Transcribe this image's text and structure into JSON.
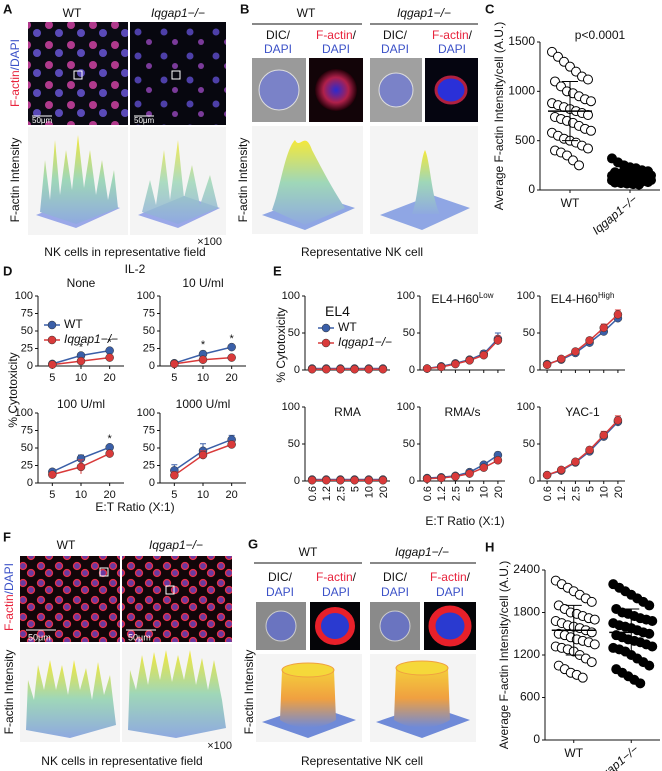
{
  "panel_labels": [
    "A",
    "B",
    "C",
    "D",
    "E",
    "F",
    "G",
    "H"
  ],
  "genotypes": {
    "wt": "WT",
    "ko": "Iqgap1−/−"
  },
  "stain": {
    "factin": "F-actin",
    "slash": "/",
    "dapi": "DAPI",
    "dic": "DIC/"
  },
  "scale_bar": "50μm",
  "intensity_label": "F-actin Intensity",
  "magnification": "×100",
  "caption_field": "NK cells in representative field",
  "caption_cell": "Representative NK cell",
  "panel_d": {
    "title": "IL-2",
    "ylabel": "% Cytotoxicity",
    "xlabel": "E:T Ratio (X:1)"
  },
  "panel_e": {
    "ylabel": "% Cytotoxicity",
    "xlabel": "E:T Ratio (X:1)"
  },
  "chart_data": [
    {
      "type": "scatter",
      "ylabel": "Average F-actin Intensity/cell (A.U.)",
      "annotation": "p<0.0001",
      "ylim": [
        0,
        1500
      ],
      "yticks": [
        0,
        500,
        1000,
        1500
      ],
      "categories": [
        "WT",
        "Iqgap1−/−"
      ],
      "series": [
        {
          "fill": "#ffffff",
          "mean": 800,
          "sd": 300,
          "values": [
            1400,
            1350,
            1300,
            1250,
            1200,
            1150,
            1120,
            1100,
            1050,
            1000,
            980,
            950,
            920,
            900,
            880,
            860,
            840,
            820,
            800,
            780,
            760,
            740,
            720,
            700,
            680,
            650,
            620,
            600,
            580,
            550,
            520,
            500,
            480,
            450,
            420,
            400,
            380,
            350,
            300,
            250
          ]
        },
        {
          "fill": "#000000",
          "mean": 140,
          "sd": 60,
          "values": [
            320,
            280,
            250,
            230,
            220,
            200,
            190,
            180,
            170,
            165,
            160,
            155,
            150,
            148,
            145,
            140,
            135,
            130,
            128,
            125,
            120,
            118,
            115,
            112,
            110,
            108,
            105,
            100,
            98,
            95,
            92,
            90,
            88,
            85,
            80,
            75,
            70,
            65,
            60,
            55
          ]
        }
      ]
    },
    {
      "type": "line",
      "title": "None",
      "categories": [
        "5",
        "10",
        "20"
      ],
      "ylim": [
        0,
        100
      ],
      "yticks": [
        0,
        25,
        50,
        75,
        100
      ],
      "star_labels": [
        null,
        "*",
        "*"
      ],
      "series": [
        {
          "name": "WT",
          "color": "#3a5fa8",
          "values": [
            3,
            15,
            22
          ],
          "errors": [
            2,
            3,
            3
          ]
        },
        {
          "name": "Iqgap1−/−",
          "color": "#d93a3a",
          "values": [
            2,
            7,
            12
          ],
          "errors": [
            1,
            2,
            2
          ]
        }
      ]
    },
    {
      "type": "line",
      "title": "10 U/ml",
      "categories": [
        "5",
        "10",
        "20"
      ],
      "ylim": [
        0,
        100
      ],
      "yticks": [
        0,
        25,
        50,
        75,
        100
      ],
      "star_labels": [
        null,
        "*",
        "*"
      ],
      "series": [
        {
          "color": "#3a5fa8",
          "values": [
            4,
            17,
            27
          ],
          "errors": [
            2,
            4,
            3
          ]
        },
        {
          "color": "#d93a3a",
          "values": [
            3,
            9,
            12
          ],
          "errors": [
            1,
            2,
            2
          ]
        }
      ]
    },
    {
      "type": "line",
      "title": "100 U/ml",
      "categories": [
        "5",
        "10",
        "20"
      ],
      "ylim": [
        0,
        100
      ],
      "yticks": [
        0,
        25,
        50,
        75,
        100
      ],
      "star_labels": [
        null,
        null,
        "*"
      ],
      "series": [
        {
          "color": "#3a5fa8",
          "values": [
            16,
            35,
            51
          ],
          "errors": [
            4,
            5,
            3
          ]
        },
        {
          "color": "#d93a3a",
          "values": [
            12,
            23,
            42
          ],
          "errors": [
            3,
            10,
            4
          ]
        }
      ]
    },
    {
      "type": "line",
      "title": "1000 U/ml",
      "categories": [
        "5",
        "10",
        "20"
      ],
      "ylim": [
        0,
        100
      ],
      "yticks": [
        0,
        25,
        50,
        75,
        100
      ],
      "star_labels": [
        null,
        null,
        null
      ],
      "series": [
        {
          "color": "#3a5fa8",
          "values": [
            18,
            46,
            62
          ],
          "errors": [
            8,
            10,
            6
          ]
        },
        {
          "color": "#d93a3a",
          "values": [
            11,
            40,
            55
          ],
          "errors": [
            5,
            6,
            5
          ]
        }
      ]
    },
    {
      "type": "line",
      "title": "EL4",
      "categories": [
        "0.6",
        "1.2",
        "2.5",
        "5",
        "10",
        "20"
      ],
      "ylim": [
        0,
        100
      ],
      "yticks": [
        0,
        50,
        100
      ],
      "series": [
        {
          "name": "WT",
          "color": "#3a5fa8",
          "values": [
            2,
            2,
            2,
            2,
            2,
            2
          ],
          "errors": [
            1,
            1,
            1,
            1,
            1,
            1
          ]
        },
        {
          "name": "Iqgap1−/−",
          "color": "#d93a3a",
          "values": [
            1,
            1,
            1,
            1,
            1,
            1
          ],
          "errors": [
            1,
            1,
            1,
            1,
            1,
            1
          ]
        }
      ]
    },
    {
      "type": "line",
      "title": "EL4-H60",
      "title_sup": "Low",
      "categories": [
        "0.6",
        "1.2",
        "2.5",
        "5",
        "10",
        "20"
      ],
      "ylim": [
        0,
        100
      ],
      "yticks": [
        0,
        50,
        100
      ],
      "series": [
        {
          "color": "#3a5fa8",
          "values": [
            2,
            5,
            9,
            14,
            22,
            42
          ],
          "errors": [
            1,
            1,
            2,
            3,
            4,
            8
          ]
        },
        {
          "color": "#d93a3a",
          "values": [
            2,
            4,
            8,
            13,
            20,
            40
          ],
          "errors": [
            1,
            1,
            2,
            3,
            4,
            6
          ]
        }
      ]
    },
    {
      "type": "line",
      "title": "EL4-H60",
      "title_sup": "High",
      "categories": [
        "0.6",
        "1.2",
        "2.5",
        "5",
        "10",
        "20"
      ],
      "ylim": [
        0,
        100
      ],
      "yticks": [
        0,
        50,
        100
      ],
      "series": [
        {
          "color": "#3a5fa8",
          "values": [
            8,
            14,
            23,
            37,
            52,
            70
          ],
          "errors": [
            2,
            2,
            3,
            4,
            4,
            5
          ]
        },
        {
          "color": "#d93a3a",
          "values": [
            7,
            15,
            25,
            40,
            57,
            75
          ],
          "errors": [
            2,
            2,
            3,
            4,
            5,
            6
          ]
        }
      ]
    },
    {
      "type": "line",
      "title": "RMA",
      "categories": [
        "0.6",
        "1.2",
        "2.5",
        "5",
        "10",
        "20"
      ],
      "ylim": [
        0,
        100
      ],
      "yticks": [
        0,
        50,
        100
      ],
      "series": [
        {
          "color": "#3a5fa8",
          "values": [
            2,
            2,
            2,
            2,
            2,
            2
          ],
          "errors": [
            1,
            1,
            1,
            1,
            1,
            1
          ]
        },
        {
          "color": "#d93a3a",
          "values": [
            1,
            1,
            1,
            1,
            1,
            1
          ],
          "errors": [
            1,
            1,
            1,
            1,
            1,
            1
          ]
        }
      ]
    },
    {
      "type": "line",
      "title": "RMA/s",
      "categories": [
        "0.6",
        "1.2",
        "2.5",
        "5",
        "10",
        "20"
      ],
      "ylim": [
        0,
        100
      ],
      "yticks": [
        0,
        50,
        100
      ],
      "series": [
        {
          "color": "#3a5fa8",
          "values": [
            4,
            5,
            7,
            12,
            22,
            35
          ],
          "errors": [
            1,
            1,
            2,
            2,
            3,
            4
          ]
        },
        {
          "color": "#d93a3a",
          "values": [
            3,
            4,
            6,
            10,
            18,
            28
          ],
          "errors": [
            1,
            1,
            1,
            2,
            3,
            3
          ]
        }
      ]
    },
    {
      "type": "line",
      "title": "YAC-1",
      "categories": [
        "0.6",
        "1.2",
        "2.5",
        "5",
        "10",
        "20"
      ],
      "ylim": [
        0,
        100
      ],
      "yticks": [
        0,
        50,
        100
      ],
      "series": [
        {
          "color": "#3a5fa8",
          "values": [
            8,
            14,
            25,
            40,
            60,
            80
          ],
          "errors": [
            1,
            2,
            3,
            4,
            5,
            6
          ]
        },
        {
          "color": "#d93a3a",
          "values": [
            8,
            15,
            26,
            42,
            62,
            82
          ],
          "errors": [
            1,
            2,
            3,
            4,
            5,
            6
          ]
        }
      ]
    },
    {
      "type": "scatter",
      "ylabel": "Average F-actin Intensity/cell (A.U.)",
      "ylim": [
        0,
        2400
      ],
      "yticks": [
        0,
        600,
        1200,
        1800,
        2400
      ],
      "categories": [
        "WT",
        "Iqgap1−/−"
      ],
      "series": [
        {
          "fill": "#ffffff",
          "mean": 1550,
          "sd": 350,
          "values": [
            2250,
            2200,
            2150,
            2100,
            2050,
            2000,
            1950,
            1900,
            1850,
            1800,
            1780,
            1750,
            1720,
            1700,
            1680,
            1650,
            1620,
            1600,
            1580,
            1550,
            1520,
            1500,
            1480,
            1450,
            1420,
            1400,
            1380,
            1350,
            1320,
            1300,
            1280,
            1250,
            1200,
            1150,
            1100,
            1050,
            1000,
            950,
            920,
            880
          ]
        },
        {
          "fill": "#000000",
          "mean": 1520,
          "sd": 330,
          "values": [
            2200,
            2150,
            2100,
            2050,
            2000,
            1950,
            1900,
            1850,
            1800,
            1780,
            1750,
            1720,
            1700,
            1680,
            1650,
            1620,
            1600,
            1580,
            1550,
            1520,
            1500,
            1480,
            1450,
            1420,
            1400,
            1380,
            1350,
            1320,
            1300,
            1280,
            1250,
            1200,
            1150,
            1100,
            1050,
            1000,
            950,
            900,
            850,
            800
          ]
        }
      ]
    }
  ]
}
